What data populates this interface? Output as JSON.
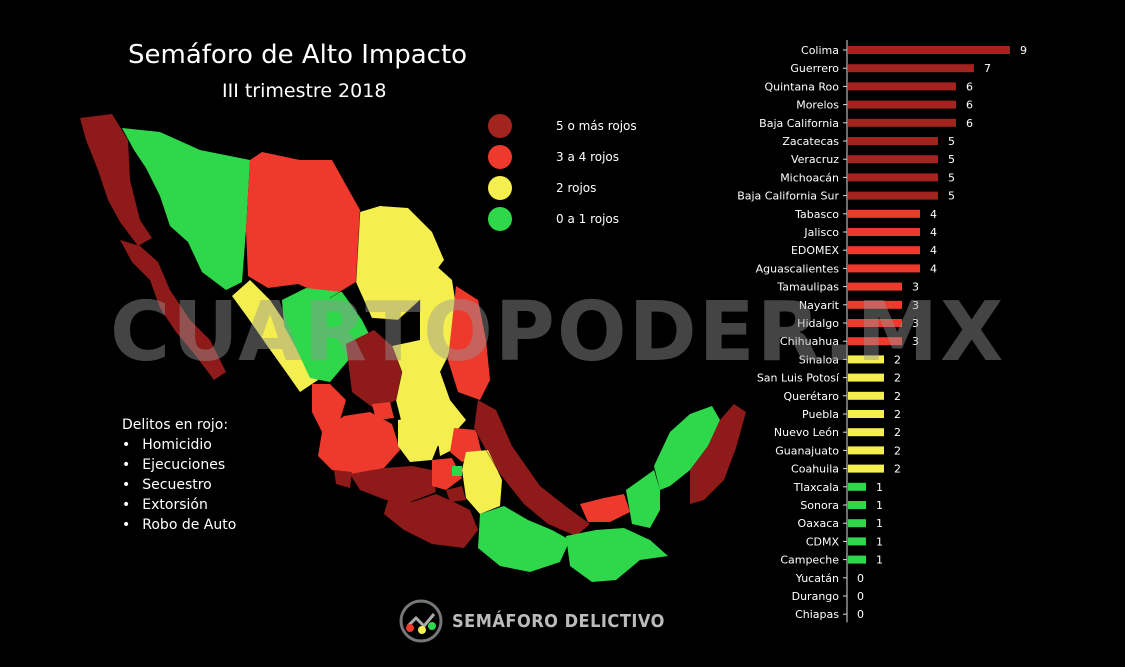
{
  "title": "Semáforo de Alto Impacto",
  "subtitle": "III trimestre 2018",
  "legend": [
    {
      "label": "5 o más rojos",
      "color": "#a3241e"
    },
    {
      "label": "3 a 4 rojos",
      "color": "#ee3a2c"
    },
    {
      "label": "2 rojos",
      "color": "#f4ee4e"
    },
    {
      "label": "0 a 1 rojos",
      "color": "#2fd84a"
    }
  ],
  "crimes": {
    "heading": "Delitos en rojo:",
    "items": [
      "Homicidio",
      "Ejecuciones",
      "Secuestro",
      "Extorsión",
      "Robo de Auto"
    ]
  },
  "watermark": "CUARTOPODER.MX",
  "logo_text": "SEMÁFORO DELICTIVO",
  "chart_data": {
    "type": "bar",
    "orientation": "horizontal",
    "categories": [
      "Colima",
      "Guerrero",
      "Quintana Roo",
      "Morelos",
      "Baja California",
      "Zacatecas",
      "Veracruz",
      "Michoacán",
      "Baja California Sur",
      "Tabasco",
      "Jalisco",
      "EDOMEX",
      "Aguascalientes",
      "Tamaulipas",
      "Nayarit",
      "Hidalgo",
      "Chihuahua",
      "Sinaloa",
      "San Luis Potosí",
      "Querétaro",
      "Puebla",
      "Nuevo León",
      "Guanajuato",
      "Coahuila",
      "Tlaxcala",
      "Sonora",
      "Oaxaca",
      "CDMX",
      "Campeche",
      "Yucatán",
      "Durango",
      "Chiapas"
    ],
    "values": [
      9,
      7,
      6,
      6,
      6,
      5,
      5,
      5,
      5,
      4,
      4,
      4,
      4,
      3,
      3,
      3,
      3,
      2,
      2,
      2,
      2,
      2,
      2,
      2,
      1,
      1,
      1,
      1,
      1,
      0,
      0,
      0
    ],
    "title": "",
    "xlabel": "",
    "ylabel": "",
    "xlim": [
      0,
      9
    ]
  }
}
